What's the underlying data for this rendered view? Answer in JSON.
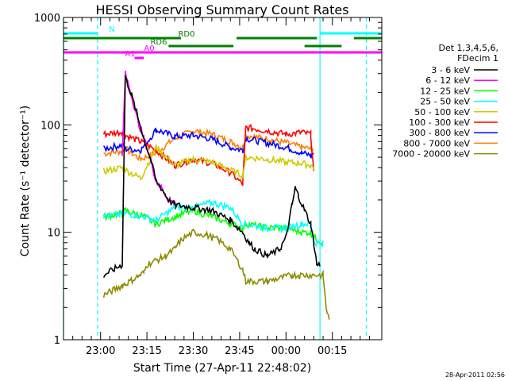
{
  "chart_data": {
    "type": "line",
    "title": "HESSI Observing Summary Count Rates",
    "xlabel": "Start Time (27-Apr-11 22:48:02)",
    "ylabel": "Count Rate (s⁻¹ detector⁻¹)",
    "yscale": "log",
    "ylim": [
      1,
      1000
    ],
    "xlim_minutes": [
      0,
      103
    ],
    "y_ticks": [
      {
        "value": 1,
        "label": "1"
      },
      {
        "value": 10,
        "label": "10"
      },
      {
        "value": 100,
        "label": "100"
      },
      {
        "value": 1000,
        "label": "1000"
      }
    ],
    "x_ticks": [
      {
        "minute": 12,
        "label": "23:00"
      },
      {
        "minute": 27,
        "label": "23:15"
      },
      {
        "minute": 42,
        "label": "23:30"
      },
      {
        "minute": 57,
        "label": "23:45"
      },
      {
        "minute": 72,
        "label": "00:00"
      },
      {
        "minute": 87,
        "label": "00:15"
      }
    ],
    "legend": {
      "placement": "right",
      "header": [
        "Det 1,3,4,5,6,",
        "FDecim 1"
      ],
      "entries": [
        {
          "label": "3 - 6 keV",
          "color": "#000000"
        },
        {
          "label": "6 - 12 keV",
          "color": "#ff00ff"
        },
        {
          "label": "12 - 25 keV",
          "color": "#00ff00"
        },
        {
          "label": "25 - 50 keV",
          "color": "#00ffff"
        },
        {
          "label": "50 - 100 keV",
          "color": "#cccc00"
        },
        {
          "label": "100 - 300 keV",
          "color": "#ff0000"
        },
        {
          "label": "300 - 800 keV",
          "color": "#0000ff"
        },
        {
          "label": "800 - 7000 keV",
          "color": "#ff8000"
        },
        {
          "label": "7000 - 20000 keV",
          "color": "#8b8b00"
        }
      ]
    },
    "series": [
      {
        "color": "#ff8000",
        "x": [
          13,
          19,
          20,
          25,
          30,
          36,
          42,
          48,
          54,
          58,
          59,
          66,
          72,
          77,
          80,
          81
        ],
        "y": [
          54,
          57,
          60,
          48,
          55,
          75,
          88,
          82,
          70,
          62,
          80,
          74,
          68,
          62,
          60,
          60
        ]
      },
      {
        "color": "#0000ff",
        "x": [
          13,
          19,
          20,
          25,
          30,
          36,
          42,
          48,
          54,
          58,
          59,
          66,
          72,
          77,
          80,
          81
        ],
        "y": [
          60,
          65,
          60,
          58,
          90,
          78,
          80,
          74,
          62,
          58,
          75,
          68,
          62,
          55,
          52,
          54
        ]
      },
      {
        "color": "#ff0000",
        "x": [
          13,
          19,
          20,
          25,
          30,
          36,
          42,
          48,
          54,
          58,
          59,
          66,
          72,
          77,
          80,
          81
        ],
        "y": [
          82,
          86,
          80,
          70,
          58,
          42,
          48,
          44,
          36,
          28,
          95,
          88,
          82,
          85,
          82,
          35
        ]
      },
      {
        "color": "#cccc00",
        "x": [
          13,
          19,
          20,
          25,
          30,
          36,
          42,
          48,
          54,
          58,
          59,
          66,
          72,
          77,
          80,
          81
        ],
        "y": [
          37,
          40,
          38,
          32,
          62,
          42,
          48,
          45,
          38,
          34,
          50,
          48,
          45,
          44,
          42,
          40
        ]
      },
      {
        "color": "#00ff00",
        "x": [
          13,
          19,
          20,
          26,
          30,
          36,
          42,
          48,
          54,
          58,
          59,
          66,
          72,
          77,
          80,
          81,
          84
        ],
        "y": [
          14,
          15,
          16,
          14,
          12,
          14,
          16,
          14,
          12,
          11,
          12,
          11,
          11,
          10,
          10,
          9,
          8
        ]
      },
      {
        "color": "#00ffff",
        "x": [
          13,
          20,
          26,
          30,
          36,
          42,
          48,
          54,
          58,
          66,
          72,
          77,
          80,
          81,
          84
        ],
        "y": [
          14,
          15,
          14,
          13,
          17,
          17,
          19,
          17,
          12,
          11,
          11,
          12,
          12,
          8,
          8
        ]
      },
      {
        "color": "#ff00ff",
        "x": [
          19,
          20,
          22,
          24,
          26,
          28,
          30,
          32,
          34,
          36
        ],
        "y": [
          50,
          300,
          190,
          110,
          75,
          50,
          30,
          25,
          20,
          19
        ]
      },
      {
        "color": "#000000",
        "x": [
          13,
          19,
          20,
          22,
          24,
          26,
          28,
          30,
          32,
          34,
          36,
          42,
          48,
          54,
          58,
          60,
          62,
          66,
          70,
          72,
          74,
          75,
          76,
          78,
          80,
          81,
          82,
          83
        ],
        "y": [
          4,
          5,
          280,
          190,
          120,
          75,
          50,
          30,
          25,
          20,
          18,
          17,
          16,
          13,
          10,
          8,
          7,
          6,
          7,
          9,
          18,
          26,
          22,
          16,
          12,
          8,
          5,
          5
        ]
      },
      {
        "color": "#8b8b00",
        "x": [
          13,
          19,
          20,
          26,
          27,
          33,
          36,
          38,
          42,
          46,
          50,
          54,
          58,
          59,
          66,
          74,
          76,
          84,
          85,
          86
        ],
        "y": [
          2.6,
          3.2,
          3.3,
          4.2,
          5.0,
          6.0,
          7.0,
          8.5,
          10,
          9.5,
          8.5,
          7,
          4.5,
          3.5,
          3.5,
          4.0,
          4.0,
          4.0,
          2.0,
          1.5
        ]
      }
    ],
    "top_bars": [
      {
        "label": "N",
        "color": "#00ffff",
        "segments": [
          [
            0,
            11
          ]
        ]
      },
      {
        "label": "",
        "color": "#00ffff",
        "segments": [
          [
            83,
            103
          ]
        ]
      },
      {
        "label": "RD0",
        "color": "#008000",
        "segments": [
          [
            0,
            38
          ],
          [
            56,
            82
          ],
          [
            94,
            103
          ]
        ]
      },
      {
        "label": "RD6",
        "color": "#008000",
        "segments": [
          [
            34,
            55
          ],
          [
            78,
            90
          ]
        ]
      },
      {
        "label": "A0",
        "color": "#ff00ff",
        "segments": [
          [
            0,
            103
          ]
        ]
      },
      {
        "label": "A1",
        "color": "#ff00ff",
        "segments": [
          [
            23,
            26
          ]
        ]
      }
    ],
    "vertical_lines": [
      {
        "minute": 0,
        "color": "#00ffff",
        "style": "solid"
      },
      {
        "minute": 11,
        "color": "#00ffff",
        "style": "dashed"
      },
      {
        "minute": 83,
        "color": "#00ffff",
        "style": "solid"
      },
      {
        "minute": 98,
        "color": "#00ffff",
        "style": "dashed"
      }
    ],
    "timestamp": "28-Apr-2011 02:56"
  }
}
